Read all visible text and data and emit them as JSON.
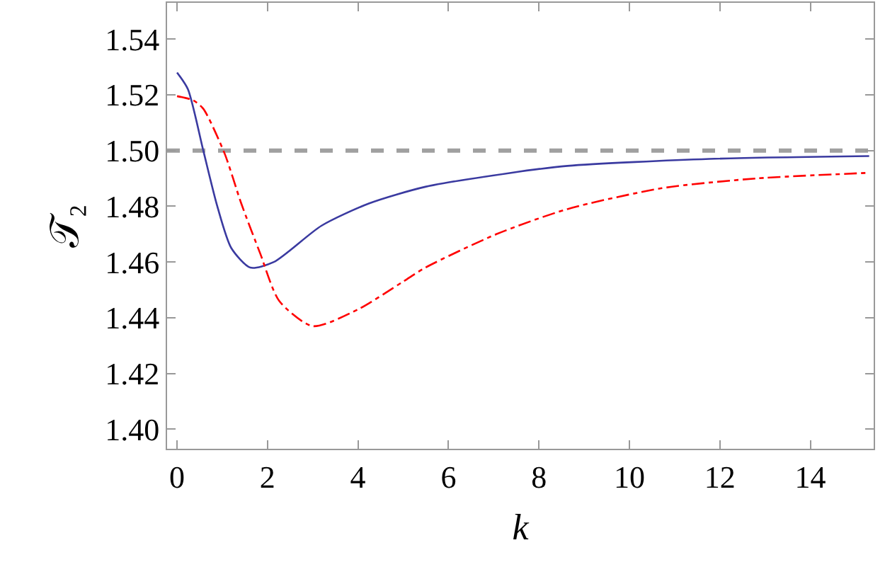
{
  "chart_data": {
    "type": "line",
    "xlabel": "k",
    "ylabel": "𝒯₂",
    "xlim": [
      -0.22,
      15.4
    ],
    "xticks": [
      0,
      2,
      4,
      6,
      8,
      10,
      12,
      14
    ],
    "ylim": [
      1.393,
      1.553
    ],
    "yticks": [
      {
        "value": 1.4,
        "label": "1.40"
      },
      {
        "value": 1.42,
        "label": "1.42"
      },
      {
        "value": 1.44,
        "label": "1.44"
      },
      {
        "value": 1.46,
        "label": "1.46"
      },
      {
        "value": 1.48,
        "label": "1.48"
      },
      {
        "value": 1.5,
        "label": "1.50"
      },
      {
        "value": 1.52,
        "label": "1.52"
      },
      {
        "value": 1.54,
        "label": "1.54"
      }
    ],
    "grid": false,
    "ref_lines": [
      {
        "axis": "y",
        "value": 1.5,
        "color": "#a0a0a0",
        "line_style": "dashed"
      }
    ],
    "series": [
      {
        "color": "#3a3aa0",
        "line_style": "solid",
        "x": [
          0,
          0.24,
          0.58,
          0.89,
          1.2,
          1.62,
          2.14,
          3.19,
          4.24,
          5.49,
          7.38,
          8.63,
          11.77,
          15.3
        ],
        "values": [
          1.528,
          1.522,
          1.5,
          1.48,
          1.465,
          1.458,
          1.46,
          1.473,
          1.481,
          1.487,
          1.492,
          1.4945,
          1.497,
          1.498
        ]
      },
      {
        "color": "#ff0000",
        "line_style": "dashed",
        "x": [
          0,
          0.36,
          0.58,
          1.05,
          1.42,
          1.84,
          2.26,
          3.0,
          4.0,
          5.0,
          5.49,
          7.06,
          8.63,
          10.72,
          12.81,
          15.3
        ],
        "values": [
          1.5195,
          1.518,
          1.515,
          1.499,
          1.481,
          1.463,
          1.446,
          1.437,
          1.443,
          1.453,
          1.458,
          1.47,
          1.479,
          1.4865,
          1.49,
          1.492
        ]
      }
    ]
  }
}
